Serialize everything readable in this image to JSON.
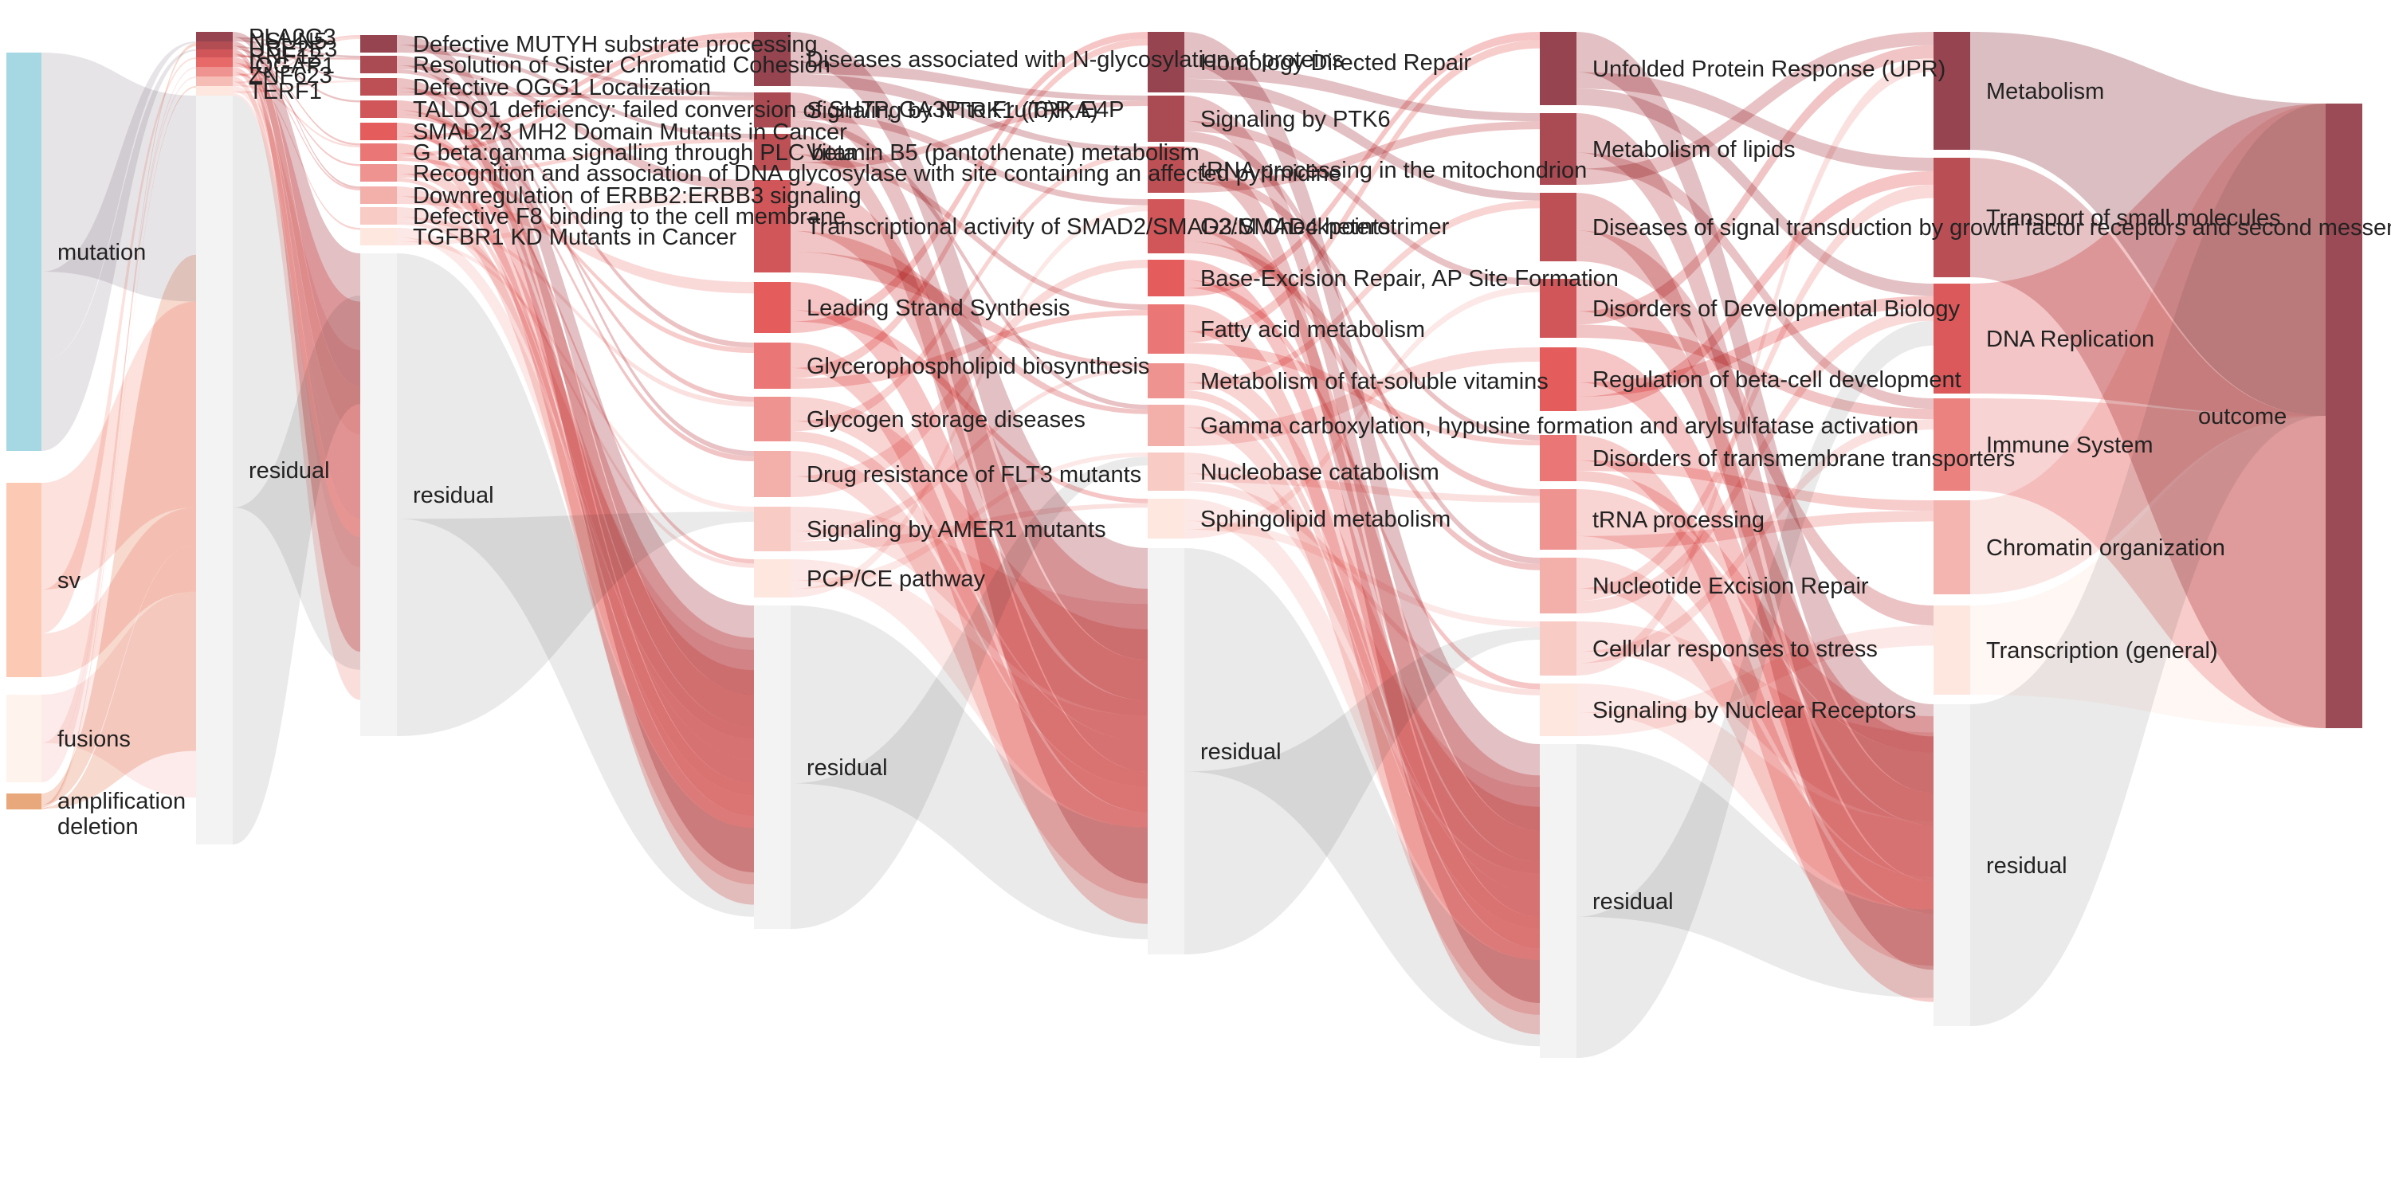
{
  "colors": {
    "background": "#ffffff",
    "residual_node": "#f3f3f3",
    "residual_link": "#e6e6e6",
    "input_mutation": "#a6d8e3",
    "input_sv": "#fcc9b4",
    "input_fusions": "#fff3ee",
    "input_amplification": "#e8a87c",
    "input_deletion": "#e8a87c",
    "output": "#9a4b55",
    "scale_dark": "#96444f",
    "scale_mid": "#e55c5c",
    "scale_light": "#fde7df"
  },
  "layers": [
    {
      "name": "inputs",
      "nodes": [
        {
          "id": "mutation",
          "label": "mutation",
          "color": "input_mutation"
        },
        {
          "id": "sv",
          "label": "sv",
          "color": "input_sv"
        },
        {
          "id": "fusions",
          "label": "fusions",
          "color": "input_fusions"
        },
        {
          "id": "amplification",
          "label": "amplification",
          "color": "input_amplification"
        },
        {
          "id": "deletion",
          "label": "deletion",
          "color": "input_deletion"
        }
      ]
    },
    {
      "name": "genes",
      "nodes": [
        {
          "id": "g1",
          "label": "PLA2G3"
        },
        {
          "id": "g2",
          "label": "NSUN5"
        },
        {
          "id": "g3",
          "label": "UBE2E3"
        },
        {
          "id": "g4",
          "label": "RNF12"
        },
        {
          "id": "g5",
          "label": "IQGAP1"
        },
        {
          "id": "g6",
          "label": "ZNF623"
        },
        {
          "id": "g7",
          "label": "TERF1"
        },
        {
          "id": "g_res",
          "label": "residual"
        }
      ]
    },
    {
      "name": "h0",
      "nodes": [
        {
          "id": "a1",
          "label": "Defective MUTYH substrate processing"
        },
        {
          "id": "a2",
          "label": "Resolution of Sister Chromatid Cohesion"
        },
        {
          "id": "a3",
          "label": "Defective OGG1 Localization"
        },
        {
          "id": "a4",
          "label": "TALDO1 deficiency: failed conversion of SH7P, GA3P to Fru(6)P, E4P"
        },
        {
          "id": "a5",
          "label": "SMAD2/3 MH2 Domain Mutants in Cancer"
        },
        {
          "id": "a6",
          "label": "G beta:gamma signalling through PLC beta"
        },
        {
          "id": "a7",
          "label": "Recognition and association of DNA glycosylase with site containing an affected pyrimidine"
        },
        {
          "id": "a8",
          "label": "Downregulation of ERBB2:ERBB3 signaling"
        },
        {
          "id": "a9",
          "label": "Defective F8 binding to the cell membrane"
        },
        {
          "id": "a10",
          "label": "TGFBR1 KD Mutants in Cancer"
        },
        {
          "id": "a_res",
          "label": "residual"
        }
      ]
    },
    {
      "name": "h1",
      "nodes": [
        {
          "id": "b1",
          "label": "Diseases associated with N-glycosylation of proteins"
        },
        {
          "id": "b2",
          "label": "Signaling by NTRK1 (TRKA)"
        },
        {
          "id": "b3",
          "label": "Vitamin B5 (pantothenate) metabolism"
        },
        {
          "id": "b4",
          "label": "Transcriptional activity of SMAD2/SMAD3:SMAD4 heterotrimer"
        },
        {
          "id": "b5",
          "label": "Leading Strand Synthesis"
        },
        {
          "id": "b6",
          "label": "Glycerophospholipid biosynthesis"
        },
        {
          "id": "b7",
          "label": "Glycogen storage diseases"
        },
        {
          "id": "b8",
          "label": "Drug resistance of FLT3 mutants"
        },
        {
          "id": "b9",
          "label": "Signaling by AMER1 mutants"
        },
        {
          "id": "b10",
          "label": "PCP/CE pathway"
        },
        {
          "id": "b_res",
          "label": "residual"
        }
      ]
    },
    {
      "name": "h2",
      "nodes": [
        {
          "id": "c1",
          "label": "Homology Directed Repair"
        },
        {
          "id": "c2",
          "label": "Signaling by PTK6"
        },
        {
          "id": "c3",
          "label": "tRNA processing in the mitochondrion"
        },
        {
          "id": "c4",
          "label": "G2/M Checkpoints"
        },
        {
          "id": "c5",
          "label": "Base-Excision Repair, AP Site Formation"
        },
        {
          "id": "c6",
          "label": "Fatty acid metabolism"
        },
        {
          "id": "c7",
          "label": "Metabolism of fat-soluble vitamins"
        },
        {
          "id": "c8",
          "label": "Gamma carboxylation, hypusine formation and arylsulfatase activation"
        },
        {
          "id": "c9",
          "label": "Nucleobase catabolism"
        },
        {
          "id": "c10",
          "label": "Sphingolipid metabolism"
        },
        {
          "id": "c_res",
          "label": "residual"
        }
      ]
    },
    {
      "name": "h3",
      "nodes": [
        {
          "id": "d1",
          "label": "Unfolded Protein Response (UPR)"
        },
        {
          "id": "d2",
          "label": "Metabolism of lipids"
        },
        {
          "id": "d3",
          "label": "Diseases of signal transduction by growth factor receptors and second messengers"
        },
        {
          "id": "d4",
          "label": "Disorders of Developmental Biology"
        },
        {
          "id": "d5",
          "label": "Regulation of beta-cell development"
        },
        {
          "id": "d6",
          "label": "Disorders of transmembrane transporters"
        },
        {
          "id": "d7",
          "label": "tRNA processing"
        },
        {
          "id": "d8",
          "label": "Nucleotide Excision Repair"
        },
        {
          "id": "d9",
          "label": "Cellular responses to stress"
        },
        {
          "id": "d10",
          "label": "Signaling by Nuclear Receptors"
        },
        {
          "id": "d_res",
          "label": "residual"
        }
      ]
    },
    {
      "name": "h4",
      "nodes": [
        {
          "id": "e1",
          "label": "Metabolism"
        },
        {
          "id": "e2",
          "label": "Transport of small molecules"
        },
        {
          "id": "e3",
          "label": "DNA Replication"
        },
        {
          "id": "e4",
          "label": "Immune System"
        },
        {
          "id": "e5",
          "label": "Chromatin organization"
        },
        {
          "id": "e6",
          "label": "Transcription (general)"
        },
        {
          "id": "e_res",
          "label": "residual"
        }
      ]
    },
    {
      "name": "output",
      "nodes": [
        {
          "id": "outcome",
          "label": "outcome",
          "color": "output"
        }
      ]
    }
  ]
}
